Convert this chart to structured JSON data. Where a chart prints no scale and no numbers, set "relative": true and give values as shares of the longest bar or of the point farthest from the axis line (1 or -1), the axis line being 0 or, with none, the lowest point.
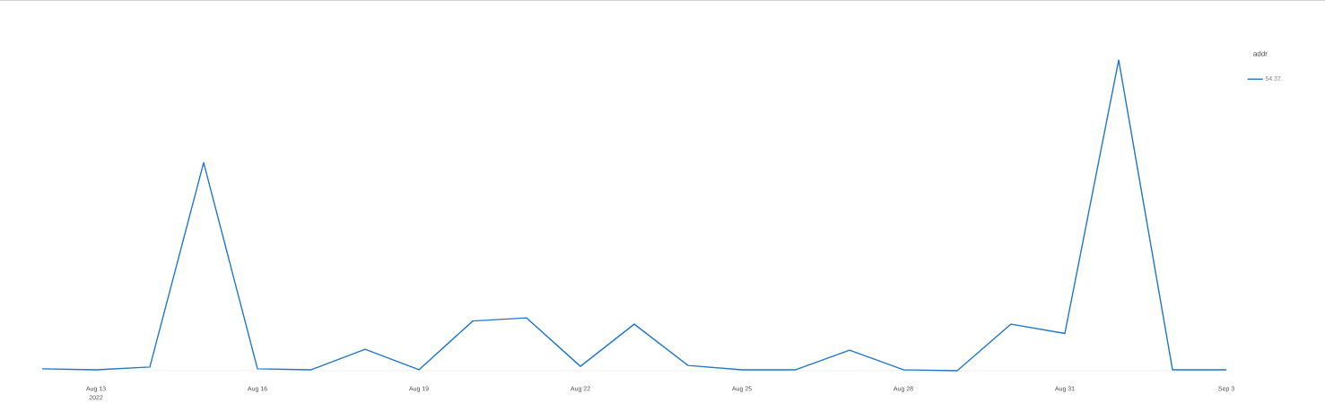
{
  "chart_data": {
    "type": "line",
    "relative": true,
    "legend_title": "addr",
    "legend": "top right",
    "x": [
      "2022-08-12",
      "2022-08-13",
      "2022-08-14",
      "2022-08-15",
      "2022-08-16",
      "2022-08-17",
      "2022-08-18",
      "2022-08-19",
      "2022-08-20",
      "2022-08-21",
      "2022-08-22",
      "2022-08-23",
      "2022-08-24",
      "2022-08-25",
      "2022-08-26",
      "2022-08-27",
      "2022-08-28",
      "2022-08-29",
      "2022-08-30",
      "2022-08-31",
      "2022-09-01",
      "2022-09-02",
      "2022-09-03"
    ],
    "series": [
      {
        "name": "54.37.",
        "color": "#1f77c9",
        "values": [
          0.006,
          0.003,
          0.012,
          0.67,
          0.006,
          0.003,
          0.069,
          0.003,
          0.16,
          0.17,
          0.014,
          0.15,
          0.017,
          0.003,
          0.003,
          0.066,
          0.003,
          0,
          0.15,
          0.12,
          1,
          0.003,
          0.003
        ]
      }
    ],
    "xlim": [
      "2022-08-12",
      "2022-09-03"
    ],
    "xticks": [
      {
        "value": "2022-08-13",
        "label": "Aug 13"
      },
      {
        "value": "2022-08-16",
        "label": "Aug 16"
      },
      {
        "value": "2022-08-19",
        "label": "Aug 19"
      },
      {
        "value": "2022-08-22",
        "label": "Aug 22"
      },
      {
        "value": "2022-08-25",
        "label": "Aug 25"
      },
      {
        "value": "2022-08-28",
        "label": "Aug 28"
      },
      {
        "value": "2022-08-31",
        "label": "Aug 31"
      },
      {
        "value": "2022-09-03",
        "label": "Sep 3"
      }
    ],
    "annotations": [
      "2022"
    ]
  }
}
